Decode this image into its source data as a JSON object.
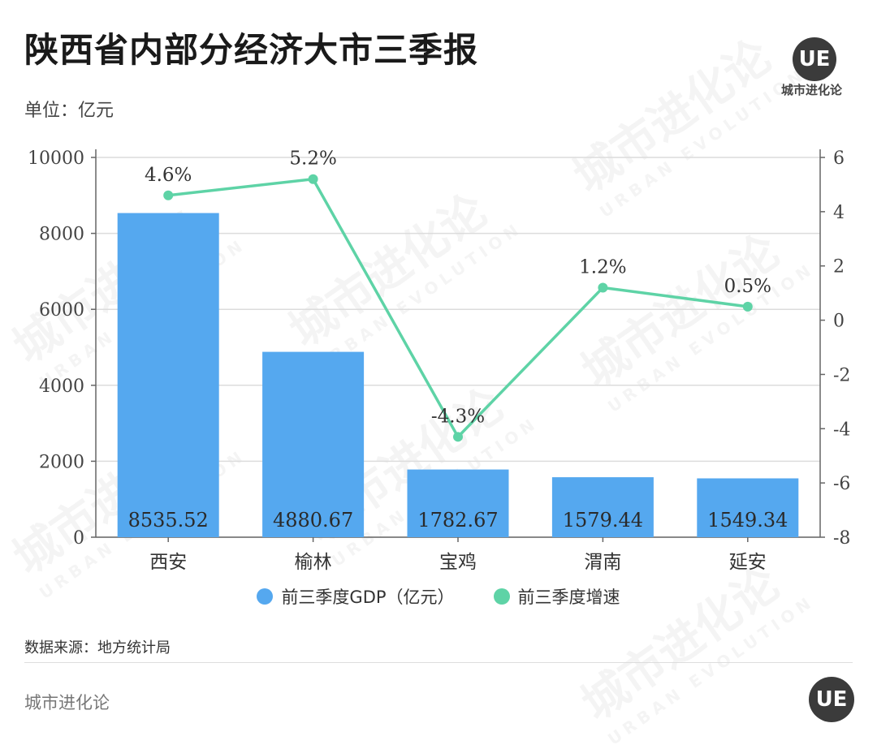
{
  "header": {
    "title": "陕西省内部分经济大市三季报",
    "unit": "单位：亿元",
    "logo_mark": "UE",
    "logo_name": "城市进化论"
  },
  "watermark": {
    "cn": "城市进化论",
    "en": "URBAN EVOLUTION"
  },
  "chart_data": {
    "type": "bar+line",
    "categories": [
      "西安",
      "榆林",
      "宝鸡",
      "渭南",
      "延安"
    ],
    "series": [
      {
        "name": "前三季度GDP（亿元）",
        "type": "bar",
        "axis": "left",
        "values": [
          8535.52,
          4880.67,
          1782.67,
          1579.44,
          1549.34
        ],
        "labels": [
          "8535.52",
          "4880.67",
          "1782.67",
          "1579.44",
          "1549.34"
        ]
      },
      {
        "name": "前三季度增速",
        "type": "line",
        "axis": "right",
        "values": [
          4.6,
          5.2,
          -4.3,
          1.2,
          0.5
        ],
        "labels": [
          "4.6%",
          "5.2%",
          "-4.3%",
          "1.2%",
          "0.5%"
        ]
      }
    ],
    "y_left": {
      "min": 0,
      "max": 10000,
      "ticks": [
        "0",
        "2000",
        "4000",
        "6000",
        "8000",
        "10000"
      ]
    },
    "y_right": {
      "min": -8,
      "max": 6,
      "ticks": [
        "-8",
        "-6",
        "-4",
        "-2",
        "0",
        "2",
        "4",
        "6"
      ]
    },
    "grid": true,
    "legend_position": "bottom",
    "colors": {
      "bar": "#55a8ef",
      "line": "#5ed3a6"
    }
  },
  "footer": {
    "source": "数据来源：地方统计局",
    "brand": "城市进化论",
    "logo_mark": "UE"
  }
}
